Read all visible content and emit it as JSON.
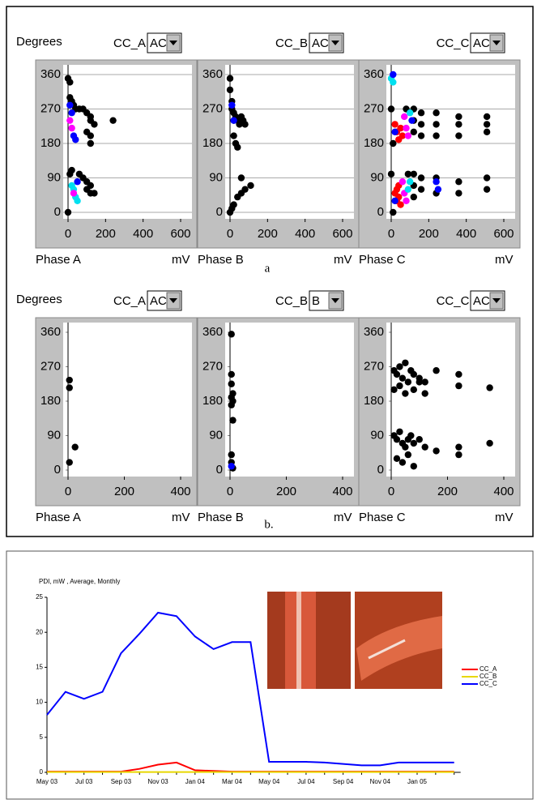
{
  "chart_data": [
    {
      "type": "scatter",
      "ylabel": "Degrees",
      "title": "CC_A",
      "dropdown": "AC",
      "xlabel": "Phase A",
      "xunit": "mV",
      "xlim": [
        0,
        600
      ],
      "xticks": [
        0,
        200,
        400,
        600
      ],
      "ylim": [
        0,
        360
      ],
      "yticks": [
        0,
        90,
        180,
        270,
        360
      ],
      "grid": true,
      "series": [
        {
          "color": "#000000",
          "x": [
            0,
            10,
            10,
            20,
            30,
            40,
            60,
            80,
            100,
            120,
            120,
            140,
            240,
            100,
            120,
            120,
            60,
            80,
            100,
            120,
            10,
            20,
            0,
            100,
            120,
            140
          ],
          "y": [
            350,
            340,
            300,
            290,
            280,
            270,
            270,
            270,
            260,
            250,
            240,
            230,
            240,
            210,
            200,
            180,
            100,
            90,
            80,
            70,
            100,
            110,
            0,
            60,
            50,
            50
          ]
        },
        {
          "color": "#0000ff",
          "x": [
            10,
            20,
            30,
            40,
            50
          ],
          "y": [
            280,
            260,
            200,
            190,
            80
          ]
        },
        {
          "color": "#00e0f0",
          "x": [
            20,
            30,
            40,
            50
          ],
          "y": [
            70,
            60,
            40,
            30
          ]
        },
        {
          "color": "#ff00ff",
          "x": [
            10,
            20,
            30
          ],
          "y": [
            240,
            220,
            50
          ]
        }
      ]
    },
    {
      "type": "scatter",
      "title": "CC_B",
      "dropdown": "AC",
      "xlabel": "Phase B",
      "xunit": "mV",
      "xlim": [
        0,
        600
      ],
      "xticks": [
        0,
        200,
        400,
        600
      ],
      "ylim": [
        0,
        360
      ],
      "yticks": [
        0,
        90,
        180,
        270,
        360
      ],
      "grid": true,
      "series": [
        {
          "color": "#000000",
          "x": [
            0,
            0,
            10,
            10,
            20,
            20,
            30,
            40,
            50,
            60,
            70,
            80,
            20,
            30,
            40,
            60,
            110,
            80,
            60,
            40,
            20,
            10,
            0
          ],
          "y": [
            350,
            320,
            290,
            270,
            260,
            240,
            250,
            240,
            230,
            250,
            240,
            230,
            200,
            180,
            170,
            90,
            70,
            60,
            50,
            40,
            20,
            10,
            0
          ]
        },
        {
          "color": "#0000ff",
          "x": [
            10,
            20
          ],
          "y": [
            280,
            240
          ]
        }
      ]
    },
    {
      "type": "scatter",
      "title": "CC_C",
      "dropdown": "AC",
      "xlabel": "Phase C",
      "xunit": "mV",
      "xlim": [
        0,
        600
      ],
      "xticks": [
        0,
        200,
        400,
        600
      ],
      "ylim": [
        0,
        360
      ],
      "yticks": [
        0,
        90,
        180,
        270,
        360
      ],
      "grid": true,
      "series": [
        {
          "color": "#000000",
          "x": [
            120,
            120,
            120,
            160,
            160,
            160,
            240,
            240,
            240,
            360,
            360,
            360,
            510,
            510,
            510,
            120,
            120,
            120,
            160,
            160,
            240,
            240,
            360,
            360,
            510,
            510,
            0,
            10,
            0,
            10,
            80,
            90
          ],
          "y": [
            270,
            240,
            210,
            260,
            230,
            200,
            260,
            230,
            200,
            250,
            230,
            200,
            250,
            230,
            210,
            100,
            70,
            40,
            90,
            60,
            90,
            50,
            80,
            50,
            90,
            60,
            270,
            180,
            100,
            0,
            270,
            100
          ]
        },
        {
          "color": "#ff0000",
          "x": [
            20,
            30,
            40,
            50,
            60,
            30,
            40,
            50,
            20,
            30,
            40
          ],
          "y": [
            230,
            210,
            190,
            220,
            200,
            60,
            40,
            20,
            50,
            30,
            70
          ]
        },
        {
          "color": "#ff00ff",
          "x": [
            70,
            80,
            90,
            60,
            70,
            80
          ],
          "y": [
            250,
            220,
            200,
            80,
            50,
            30
          ]
        },
        {
          "color": "#00e0f0",
          "x": [
            0,
            10,
            100,
            100,
            90
          ],
          "y": [
            350,
            340,
            260,
            80,
            60
          ]
        },
        {
          "color": "#0000ff",
          "x": [
            10,
            20,
            20,
            110,
            240,
            250
          ],
          "y": [
            360,
            210,
            30,
            240,
            80,
            60
          ]
        }
      ]
    },
    {
      "type": "scatter",
      "ylabel": "Degrees",
      "title": "CC_A",
      "dropdown": "AC",
      "xlabel": "Phase A",
      "xunit": "mV",
      "xlim": [
        0,
        400
      ],
      "xticks": [
        0,
        200,
        400
      ],
      "ylim": [
        0,
        360
      ],
      "yticks": [
        0,
        90,
        180,
        270,
        360
      ],
      "grid": false,
      "series": [
        {
          "color": "#000000",
          "x": [
            5,
            5,
            25,
            5
          ],
          "y": [
            235,
            215,
            60,
            20
          ]
        }
      ]
    },
    {
      "type": "scatter",
      "title": "CC_B",
      "dropdown": "B",
      "xlabel": "Phase B",
      "xunit": "mV",
      "xlim": [
        0,
        400
      ],
      "xticks": [
        0,
        200,
        400
      ],
      "ylim": [
        0,
        360
      ],
      "yticks": [
        0,
        90,
        180,
        270,
        360
      ],
      "grid": false,
      "series": [
        {
          "color": "#000000",
          "x": [
            5,
            5,
            5,
            10,
            5,
            10,
            5,
            10,
            5,
            5,
            10
          ],
          "y": [
            355,
            250,
            225,
            200,
            190,
            180,
            170,
            130,
            40,
            20,
            5
          ]
        },
        {
          "color": "#0000ff",
          "x": [
            5
          ],
          "y": [
            10
          ]
        }
      ]
    },
    {
      "type": "scatter",
      "title": "CC_C",
      "dropdown": "AC",
      "xlabel": "Phase C",
      "xunit": "mV",
      "xlim": [
        0,
        400
      ],
      "xticks": [
        0,
        200,
        400
      ],
      "ylim": [
        0,
        360
      ],
      "yticks": [
        0,
        90,
        180,
        270,
        360
      ],
      "grid": false,
      "series": [
        {
          "color": "#000000",
          "x": [
            10,
            20,
            30,
            40,
            50,
            60,
            70,
            80,
            100,
            120,
            160,
            240,
            240,
            10,
            30,
            50,
            80,
            100,
            120,
            350,
            10,
            20,
            30,
            40,
            50,
            60,
            70,
            80,
            100,
            120,
            160,
            240,
            240,
            350,
            20,
            40,
            60,
            80
          ],
          "y": [
            260,
            250,
            270,
            240,
            280,
            230,
            260,
            250,
            240,
            230,
            260,
            250,
            220,
            210,
            220,
            200,
            210,
            230,
            200,
            215,
            90,
            80,
            100,
            70,
            60,
            80,
            90,
            70,
            80,
            60,
            50,
            60,
            40,
            70,
            30,
            20,
            40,
            10
          ]
        }
      ]
    },
    {
      "type": "line",
      "title": "PDI, mW , Average, Monthly",
      "categories": [
        "May 03",
        null,
        "Jul 03",
        null,
        "Sep 03",
        null,
        "Nov 03",
        null,
        "Jan 04",
        null,
        "Mar 04",
        null,
        "May 04",
        null,
        "Jul 04",
        null,
        "Sep 04",
        null,
        "Nov 04",
        null,
        "Jan 05",
        null,
        null
      ],
      "ylim": [
        0,
        25
      ],
      "yticks": [
        0,
        5,
        10,
        15,
        20,
        25
      ],
      "series": [
        {
          "name": "CC_A",
          "color": "#ff0000",
          "values": [
            0.1,
            0.1,
            0.1,
            0.1,
            0.1,
            0.5,
            1.1,
            1.4,
            0.3,
            0.2,
            0.1,
            0.1,
            0.1,
            0.1,
            0.1,
            0.1,
            0.1,
            0.1,
            0.1,
            0.1,
            0.1,
            0.1,
            0.1
          ]
        },
        {
          "name": "CC_B",
          "color": "#e8d800",
          "values": [
            0.05,
            0.05,
            0.05,
            0.05,
            0.05,
            0.05,
            0.05,
            0.05,
            0.05,
            0.05,
            0.05,
            0.05,
            0.05,
            0.05,
            0.05,
            0.05,
            0.05,
            0.05,
            0.05,
            0.05,
            0.05,
            0.05,
            0.05
          ]
        },
        {
          "name": "CC_C",
          "color": "#0000ff",
          "values": [
            8.2,
            11.5,
            10.5,
            11.5,
            17,
            19.8,
            22.8,
            22.3,
            19.4,
            17.6,
            18.6,
            18.6,
            1.5,
            1.5,
            1.5,
            1.4,
            1.2,
            1.0,
            1.0,
            1.4,
            1.4,
            1.4,
            1.4
          ]
        }
      ]
    }
  ],
  "captions": [
    "a",
    "b."
  ]
}
